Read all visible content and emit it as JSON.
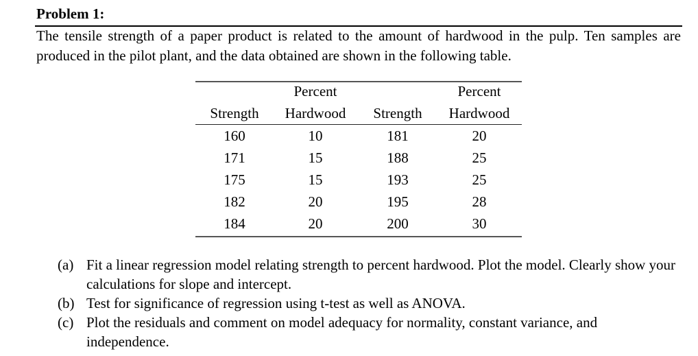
{
  "problem": {
    "title": "Problem 1:",
    "intro": "The tensile strength of a paper product is related to the amount of hardwood in the pulp.  Ten samples are produced in the pilot plant, and the data obtained are shown in the following table."
  },
  "table": {
    "header_line1": [
      "",
      "Percent",
      "",
      "Percent"
    ],
    "header_line2": [
      "Strength",
      "Hardwood",
      "Strength",
      "Hardwood"
    ],
    "rows": [
      [
        "160",
        "10",
        "181",
        "20"
      ],
      [
        "171",
        "15",
        "188",
        "25"
      ],
      [
        "175",
        "15",
        "193",
        "25"
      ],
      [
        "182",
        "20",
        "195",
        "28"
      ],
      [
        "184",
        "20",
        "200",
        "30"
      ]
    ]
  },
  "questions": [
    {
      "label": "(a)",
      "text": "Fit a linear regression model relating strength to percent hardwood. Plot the model. Clearly show your calculations for slope and intercept."
    },
    {
      "label": "(b)",
      "text": "Test for significance of regression using t-test as well as ANOVA."
    },
    {
      "label": "(c)",
      "text": "Plot the residuals and comment on model adequacy for normality, constant variance, and independence."
    }
  ]
}
